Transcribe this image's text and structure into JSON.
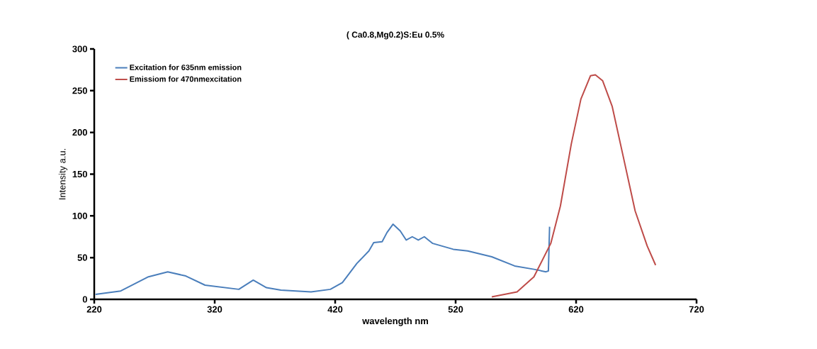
{
  "chart_data": {
    "type": "line",
    "title": "( Ca0.8,Mg0.2)S:Eu 0.5%",
    "xlabel": "wavelength nm",
    "ylabel": "Intensity a.u.",
    "xlim": [
      220,
      720
    ],
    "xticks": [
      220,
      320,
      420,
      520,
      620,
      720
    ],
    "ylim": [
      0,
      300
    ],
    "yticks": [
      0,
      50,
      100,
      150,
      200,
      250,
      300
    ],
    "grid": false,
    "legend": "top left",
    "marker": "none",
    "line_style": "solid",
    "series": [
      {
        "name": "Excitation for 635nm emission",
        "color": "#4a7ebb",
        "x": [
          221,
          242,
          265,
          281,
          296,
          312,
          340,
          352,
          363,
          375,
          400,
          416,
          426,
          438,
          448,
          452,
          459,
          463,
          468,
          474,
          479,
          484,
          489,
          494,
          501,
          518,
          530,
          550,
          569,
          585,
          595,
          597,
          598
        ],
        "values": [
          6,
          10,
          27,
          33,
          28,
          17,
          12,
          23,
          14,
          11,
          9,
          12,
          20,
          43,
          58,
          68,
          69,
          80,
          90,
          82,
          71,
          75,
          71,
          75,
          67,
          60,
          58,
          51,
          40,
          36,
          33,
          34,
          87
        ]
      },
      {
        "name": "Emissiom for 470nmexcitation",
        "color": "#be4b48",
        "x": [
          550,
          571,
          585,
          599,
          607,
          616,
          624,
          632,
          636,
          642,
          650,
          659,
          669,
          679,
          686
        ],
        "values": [
          3,
          9,
          27,
          67,
          112,
          186,
          240,
          268,
          269,
          262,
          231,
          172,
          106,
          64,
          41
        ]
      }
    ]
  }
}
